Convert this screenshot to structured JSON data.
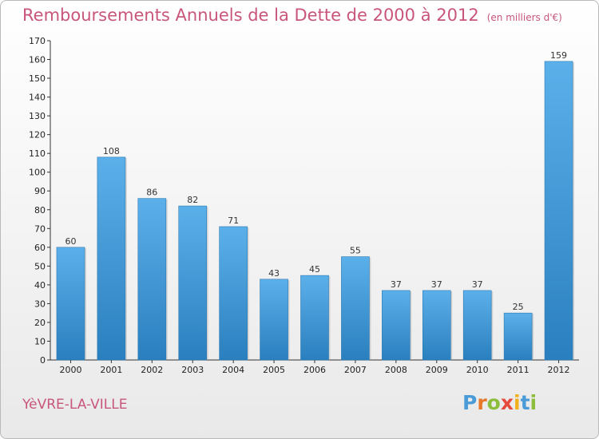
{
  "title": "Remboursements Annuels de la Dette de 2000 à 2012",
  "title_unit": "(en milliers d'€)",
  "city": "YèVRE-LA-VILLE",
  "brand": {
    "letters": [
      "P",
      "r",
      "o",
      "x",
      "i",
      "t",
      "i"
    ]
  },
  "colors": {
    "bar": "#3d98d8",
    "title": "#c8567a"
  },
  "chart_data": {
    "type": "bar",
    "categories": [
      "2000",
      "2001",
      "2002",
      "2003",
      "2004",
      "2005",
      "2006",
      "2007",
      "2008",
      "2009",
      "2010",
      "2011",
      "2012"
    ],
    "values": [
      60,
      108,
      86,
      82,
      71,
      43,
      45,
      55,
      37,
      37,
      37,
      25,
      159
    ],
    "title": "Remboursements Annuels de la Dette de 2000 à 2012",
    "xlabel": "",
    "ylabel": "",
    "ylim": [
      0,
      170
    ],
    "yticks": [
      0,
      10,
      20,
      30,
      40,
      50,
      60,
      70,
      80,
      90,
      100,
      110,
      120,
      130,
      140,
      150,
      160,
      170
    ],
    "grid": false,
    "data_labels": true
  }
}
